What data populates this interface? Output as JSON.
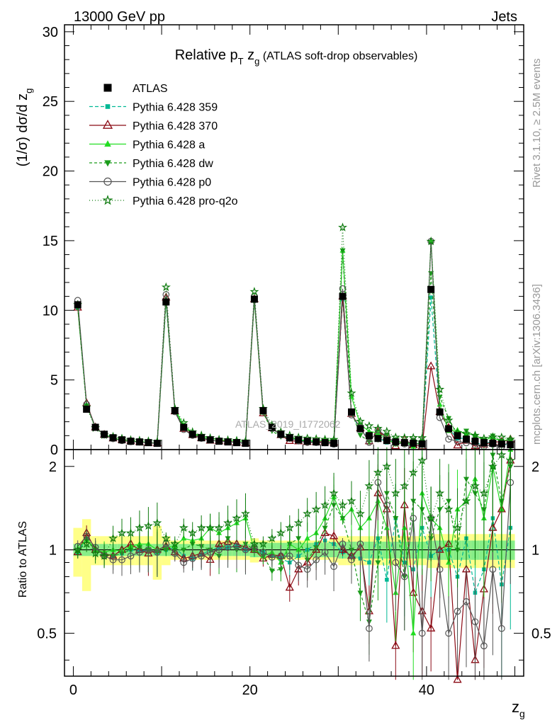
{
  "header": {
    "left": "13000 GeV pp",
    "right": "Jets"
  },
  "side_labels": {
    "version": "Rivet 3.1.10, ≥ 2.5M events",
    "source": "mcplots.cern.ch [arXiv:1306.3436]"
  },
  "watermark": "ATLAS_2019_I1772062",
  "chart_data": {
    "type": "line",
    "title_main": "Relative p",
    "title_sub1": "T",
    "title_mid": " z",
    "title_sub2": "g",
    "title_tail": " (ATLAS soft-drop observables)",
    "ylabel_main": "(1/σ) dσ/d z",
    "ylabel_sub": "g",
    "xlabel_main": "z",
    "xlabel_sub": "g",
    "ratio_ylabel": "Ratio to ATLAS",
    "xlim": [
      -1,
      51
    ],
    "ylim": [
      0,
      30.5
    ],
    "ratio_ylim": [
      0.35,
      2.3
    ],
    "x_ticks": [
      "0",
      "20",
      "40"
    ],
    "y_ticks": [
      "0",
      "5",
      "10",
      "15",
      "20",
      "25",
      "30"
    ],
    "ratio_ticks": [
      "0.5",
      "1",
      "2"
    ],
    "x": [
      0.5,
      1.5,
      2.5,
      3.5,
      4.5,
      5.5,
      6.5,
      7.5,
      8.5,
      9.5,
      10.5,
      11.5,
      12.5,
      13.5,
      14.5,
      15.5,
      16.5,
      17.5,
      18.5,
      19.5,
      20.5,
      21.5,
      22.5,
      23.5,
      24.5,
      25.5,
      26.5,
      27.5,
      28.5,
      29.5,
      30.5,
      31.5,
      32.5,
      33.5,
      34.5,
      35.5,
      36.5,
      37.5,
      38.5,
      39.5,
      40.5,
      41.5,
      42.5,
      43.5,
      44.5,
      45.5,
      46.5,
      47.5,
      48.5,
      49.5
    ],
    "data": {
      "name": "ATLAS",
      "values": [
        10.4,
        2.9,
        1.6,
        1.1,
        0.85,
        0.7,
        0.6,
        0.55,
        0.5,
        0.45,
        10.6,
        2.8,
        1.6,
        1.1,
        0.85,
        0.7,
        0.6,
        0.55,
        0.5,
        0.45,
        10.8,
        2.8,
        1.6,
        1.1,
        0.85,
        0.7,
        0.6,
        0.55,
        0.5,
        0.45,
        11.0,
        2.7,
        1.5,
        1.0,
        0.8,
        0.65,
        0.55,
        0.5,
        0.45,
        0.4,
        11.5,
        2.7,
        1.5,
        1.0,
        0.75,
        0.6,
        0.5,
        0.45,
        0.4,
        0.35
      ],
      "stat_band": [
        0.05,
        0.05,
        0.05,
        0.05,
        0.05,
        0.05,
        0.05,
        0.05,
        0.05,
        0.05,
        0.05,
        0.05,
        0.05,
        0.05,
        0.05,
        0.05,
        0.05,
        0.05,
        0.05,
        0.05,
        0.06,
        0.06,
        0.06,
        0.06,
        0.06,
        0.06,
        0.06,
        0.06,
        0.06,
        0.06,
        0.07,
        0.07,
        0.07,
        0.07,
        0.07,
        0.07,
        0.07,
        0.07,
        0.07,
        0.07,
        0.08,
        0.08,
        0.08,
        0.08,
        0.08,
        0.08,
        0.08,
        0.08,
        0.08,
        0.08
      ],
      "total_band": [
        0.2,
        0.29,
        0.12,
        0.12,
        0.12,
        0.12,
        0.12,
        0.12,
        0.12,
        0.22,
        0.12,
        0.08,
        0.08,
        0.08,
        0.08,
        0.08,
        0.08,
        0.08,
        0.08,
        0.08,
        0.1,
        0.08,
        0.08,
        0.08,
        0.08,
        0.08,
        0.08,
        0.08,
        0.08,
        0.1,
        0.12,
        0.12,
        0.12,
        0.12,
        0.12,
        0.12,
        0.12,
        0.12,
        0.12,
        0.12,
        0.14,
        0.14,
        0.14,
        0.14,
        0.14,
        0.14,
        0.14,
        0.14,
        0.14,
        0.14
      ]
    },
    "series": [
      {
        "name": "Pythia 6.428 359",
        "color": "#00b894",
        "dash": "5,3",
        "marker": "square-small",
        "ratio": [
          0.98,
          1.1,
          1.0,
          0.97,
          0.95,
          0.97,
          1.0,
          0.99,
          1.0,
          0.98,
          1.0,
          1.02,
          0.95,
          0.93,
          0.96,
          1.0,
          1.02,
          1.02,
          1.03,
          1.0,
          0.99,
          0.98,
          0.95,
          0.93,
          0.9,
          0.95,
          1.0,
          1.05,
          1.08,
          1.05,
          0.98,
          0.95,
          0.93,
          0.9,
          1.1,
          0.78,
          1.3,
          0.9,
          0.85,
          1.2,
          0.95,
          1.0,
          1.0,
          0.8,
          1.1,
          0.7,
          0.85,
          1.3,
          0.75,
          1.2
        ]
      },
      {
        "name": "Pythia 6.428 370",
        "color": "#8b0a14",
        "dash": "",
        "marker": "triangle-open",
        "ratio": [
          0.98,
          1.15,
          1.0,
          0.97,
          0.95,
          1.0,
          1.05,
          1.0,
          0.97,
          1.0,
          1.03,
          0.98,
          0.93,
          0.95,
          0.97,
          0.92,
          1.05,
          1.07,
          1.05,
          1.02,
          1.0,
          0.93,
          0.96,
          0.95,
          0.73,
          0.85,
          0.9,
          1.0,
          1.15,
          1.12,
          1.0,
          0.95,
          1.02,
          0.6,
          1.6,
          1.4,
          0.45,
          1.45,
          0.7,
          0.6,
          0.52,
          1.0,
          1.05,
          0.3,
          0.85,
          0.4,
          0.72,
          1.2,
          1.4,
          2.1
        ]
      },
      {
        "name": "Pythia 6.428 a",
        "color": "#22dd22",
        "dash": "",
        "marker": "triangle-up",
        "ratio": [
          1.0,
          1.1,
          1.0,
          0.98,
          1.0,
          0.99,
          1.03,
          1.05,
          1.05,
          1.0,
          1.02,
          1.03,
          1.1,
          1.08,
          1.1,
          1.2,
          1.15,
          1.2,
          1.25,
          1.3,
          1.0,
          0.95,
          0.98,
          0.9,
          1.05,
          1.0,
          1.1,
          1.15,
          1.3,
          1.55,
          1.3,
          1.4,
          1.2,
          1.3,
          1.5,
          1.2,
          0.7,
          1.2,
          0.5,
          1.6,
          1.3,
          1.2,
          0.9,
          1.4,
          1.5,
          1.8,
          1.3,
          2.0,
          1.4,
          2.3
        ]
      },
      {
        "name": "Pythia 6.428 dw",
        "color": "#1a9c1a",
        "dash": "4,3",
        "marker": "triangle-down",
        "ratio": [
          0.98,
          1.08,
          1.0,
          0.96,
          0.95,
          0.97,
          1.0,
          1.02,
          1.0,
          0.98,
          1.0,
          1.0,
          1.0,
          1.05,
          1.03,
          1.0,
          0.95,
          1.1,
          1.0,
          1.05,
          1.0,
          0.95,
          0.84,
          0.85,
          1.05,
          1.1,
          0.92,
          1.02,
          1.2,
          1.45,
          1.3,
          1.0,
          0.7,
          0.55,
          0.9,
          1.6,
          1.3,
          0.8,
          1.5,
          1.4,
          1.1,
          1.4,
          1.5,
          1.0,
          1.8,
          1.6,
          1.4,
          2.2,
          1.5,
          2.0
        ]
      },
      {
        "name": "Pythia 6.428 p0",
        "color": "#555555",
        "dash": "",
        "marker": "circle-open",
        "ratio": [
          1.03,
          1.12,
          1.02,
          0.95,
          0.92,
          0.92,
          0.95,
          0.98,
          1.0,
          0.98,
          1.05,
          0.97,
          0.9,
          0.93,
          0.95,
          0.98,
          1.0,
          1.02,
          1.03,
          1.0,
          1.02,
          0.98,
          0.94,
          0.95,
          0.95,
          0.88,
          0.85,
          0.92,
          0.98,
          0.87,
          1.05,
          0.92,
          1.05,
          0.52,
          1.75,
          1.45,
          0.9,
          0.8,
          1.3,
          0.5,
          1.3,
          0.85,
          0.5,
          0.6,
          0.65,
          0.55,
          0.45,
          0.85,
          0.52,
          1.75
        ]
      },
      {
        "name": "Pythia 6.428 pro-q2o",
        "color": "#0e7a0e",
        "dash": "1,3",
        "marker": "star",
        "ratio": [
          1.0,
          1.05,
          0.97,
          0.95,
          1.1,
          1.15,
          1.15,
          1.2,
          1.22,
          1.25,
          1.1,
          1.05,
          1.2,
          1.15,
          1.2,
          1.2,
          1.2,
          1.25,
          1.3,
          1.35,
          1.05,
          1.05,
          1.1,
          1.15,
          1.2,
          1.25,
          1.35,
          1.4,
          1.45,
          1.6,
          1.45,
          1.5,
          1.35,
          1.7,
          1.9,
          2.0,
          1.6,
          1.7,
          1.9,
          2.1,
          1.3,
          1.6,
          1.4,
          1.2,
          1.5,
          1.7,
          1.6,
          2.0,
          2.2,
          2.1
        ]
      }
    ]
  }
}
